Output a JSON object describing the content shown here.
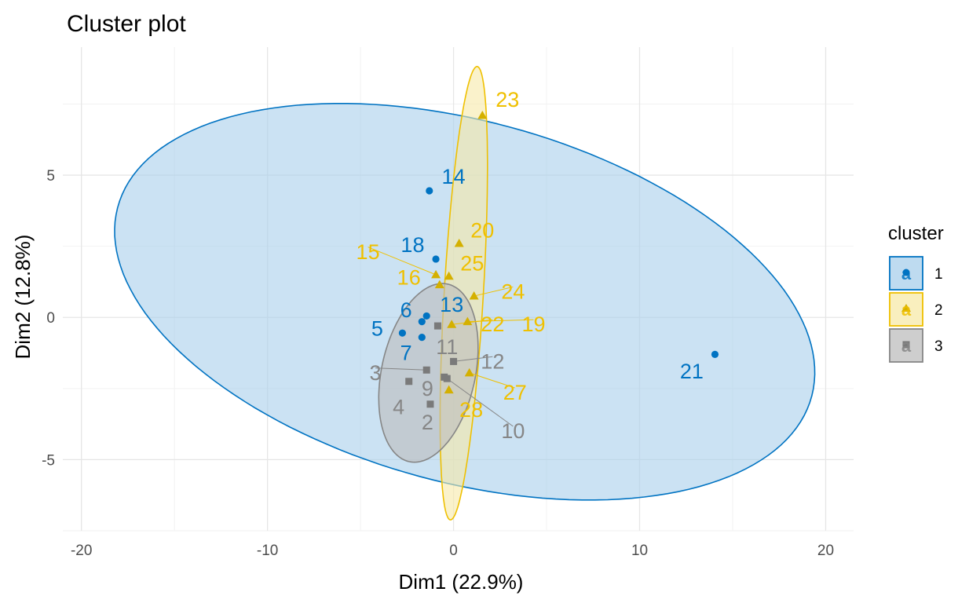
{
  "chart_data": {
    "type": "scatter",
    "title": "Cluster plot",
    "xlabel": "Dim1 (22.9%)",
    "ylabel": "Dim2 (12.8%)",
    "xlim": [
      -21,
      21.5
    ],
    "ylim": [
      -7.5,
      9.5
    ],
    "x_ticks": [
      -20,
      -10,
      0,
      10,
      20
    ],
    "y_ticks": [
      -5,
      0,
      5
    ],
    "x_tick_labels": [
      "-20",
      "-10",
      "0",
      "10",
      "20"
    ],
    "y_tick_labels": [
      "-5",
      "0",
      "5"
    ],
    "grid": true,
    "legend": {
      "title": "cluster",
      "placement": "right",
      "glyph": "a",
      "entries": [
        "1",
        "2",
        "3"
      ]
    },
    "clusters": [
      {
        "id": "1",
        "color": "#0073C2",
        "fill": "#a8cfeb",
        "marker": "circle",
        "ellipse": {
          "cx": 0.6,
          "cy": 0.55,
          "rx": 19.0,
          "ry": 6.45,
          "angle_deg": -8.5
        },
        "points": [
          {
            "label": "14",
            "x": -1.3,
            "y": 4.45,
            "lx": 0.0,
            "ly": 4.9
          },
          {
            "label": "18",
            "x": -0.95,
            "y": 2.05,
            "lx": -2.2,
            "ly": 2.5
          },
          {
            "label": "6",
            "x": -1.45,
            "y": 0.05,
            "lx": -2.55,
            "ly": 0.2
          },
          {
            "label": "13",
            "x": -1.7,
            "y": -0.15,
            "lx": -0.1,
            "ly": 0.4
          },
          {
            "label": "5",
            "x": -2.75,
            "y": -0.55,
            "lx": -4.1,
            "ly": -0.45
          },
          {
            "label": "7",
            "x": -1.7,
            "y": -0.7,
            "lx": -2.55,
            "ly": -1.3
          },
          {
            "label": "21",
            "x": 14.05,
            "y": -1.3,
            "lx": 12.8,
            "ly": -1.95
          }
        ]
      },
      {
        "id": "2",
        "color": "#EFC000",
        "fill": "#f7e9a8",
        "marker": "triangle",
        "ellipse": {
          "cx": 0.55,
          "cy": 0.85,
          "rx": 8.0,
          "ry": 1.05,
          "angle_deg": 84.8
        },
        "points": [
          {
            "label": "23",
            "x": 1.55,
            "y": 7.1,
            "lx": 2.9,
            "ly": 7.6
          },
          {
            "label": "20",
            "x": 0.3,
            "y": 2.6,
            "lx": 1.55,
            "ly": 3.0
          },
          {
            "label": "15",
            "x": -0.95,
            "y": 1.5,
            "lx": -4.6,
            "ly": 2.25
          },
          {
            "label": "16",
            "x": -0.75,
            "y": 1.15,
            "lx": -2.4,
            "ly": 1.35
          },
          {
            "label": "25",
            "x": -0.25,
            "y": 1.45,
            "lx": 1.0,
            "ly": 1.85
          },
          {
            "label": "24",
            "x": 1.1,
            "y": 0.75,
            "lx": 3.2,
            "ly": 0.85
          },
          {
            "label": "22",
            "x": -0.1,
            "y": -0.25,
            "lx": 2.1,
            "ly": -0.3
          },
          {
            "label": "19",
            "x": 0.75,
            "y": -0.15,
            "lx": 4.3,
            "ly": -0.3
          },
          {
            "label": "27",
            "x": 0.85,
            "y": -1.95,
            "lx": 3.3,
            "ly": -2.7
          },
          {
            "label": "28",
            "x": -0.25,
            "y": -2.55,
            "lx": 0.95,
            "ly": -3.3
          }
        ]
      },
      {
        "id": "3",
        "color": "#868686",
        "fill": "#bdbdbd",
        "marker": "square",
        "ellipse": {
          "cx": -1.35,
          "cy": -1.95,
          "rx": 3.35,
          "ry": 2.4,
          "angle_deg": 60
        },
        "points": [
          {
            "label": "11",
            "x": -0.85,
            "y": -0.3,
            "lx": -0.35,
            "ly": -1.1
          },
          {
            "label": "12",
            "x": 0.0,
            "y": -1.55,
            "lx": 2.1,
            "ly": -1.6
          },
          {
            "label": "3",
            "x": -1.45,
            "y": -1.85,
            "lx": -4.2,
            "ly": -2.0
          },
          {
            "label": "4",
            "x": -2.4,
            "y": -2.25,
            "lx": -2.95,
            "ly": -3.2
          },
          {
            "label": "9",
            "x": -0.5,
            "y": -2.1,
            "lx": -1.4,
            "ly": -2.55
          },
          {
            "label": "10",
            "x": -0.35,
            "y": -2.15,
            "lx": 3.2,
            "ly": -4.05
          },
          {
            "label": "2",
            "x": -1.25,
            "y": -3.05,
            "lx": -1.4,
            "ly": -3.75
          }
        ]
      }
    ]
  }
}
